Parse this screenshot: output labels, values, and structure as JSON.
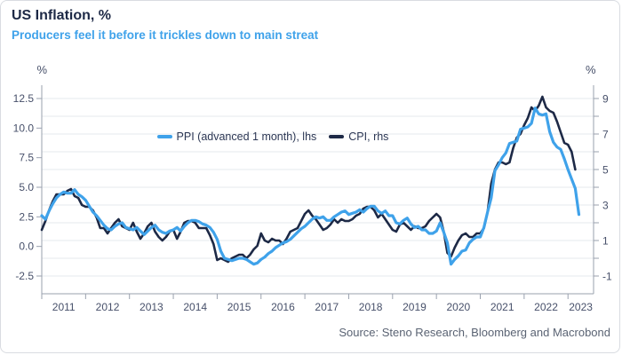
{
  "header": {
    "title": "US Inflation, %",
    "subtitle": "Producers feel it before it trickles down to main streat"
  },
  "footer": {
    "source": "Source: Steno Research, Bloomberg and Macrobond"
  },
  "colors": {
    "ppi_line": "#3fa2ea",
    "cpi_line": "#1d2946",
    "title_text": "#1d2946",
    "subtitle_text": "#3fa2ea",
    "grid": "#e6e8ec",
    "axis": "#9aa1ae",
    "tick_text": "#47506a"
  },
  "chart_data": {
    "type": "line",
    "title": "US Inflation, %",
    "subtitle": "Producers feel it before it trickles down to main streat",
    "x_unit": "month",
    "x_start": "2011-01",
    "x_months_span": 151,
    "x_tick_years": [
      "2011",
      "2012",
      "2013",
      "2014",
      "2015",
      "2016",
      "2017",
      "2018",
      "2019",
      "2020",
      "2021",
      "2022",
      "2023"
    ],
    "grid": "horizontal",
    "legend_position": "top-center",
    "left_axis": {
      "unit_label": "%",
      "min": -2.5,
      "max": 12.5,
      "tick_values": [
        12.5,
        10.0,
        7.5,
        5.0,
        2.5,
        0.0,
        -2.5
      ],
      "tick_labels": [
        "12.5",
        "10.0",
        "7.5",
        "5.0",
        "2.5",
        "0.0",
        "-2.5"
      ]
    },
    "right_axis": {
      "unit_label": "%",
      "min": -1,
      "max": 9,
      "label_values": [
        9,
        7,
        5,
        3,
        1,
        -1
      ],
      "minor_tick_values": [
        9,
        8,
        7,
        6,
        5,
        4,
        3,
        2,
        1,
        0,
        -1
      ]
    },
    "gridline_values_rhs": [
      9,
      8,
      7,
      6,
      5,
      4,
      3,
      2,
      1,
      0,
      -1
    ],
    "series": [
      {
        "name": "PPI (advanced 1 month), lhs",
        "axis": "left",
        "color": "#3fa2ea",
        "stroke_width": 3.2,
        "values": [
          2.6,
          2.3,
          3.0,
          3.6,
          4.1,
          4.4,
          4.6,
          4.5,
          4.5,
          4.8,
          4.4,
          4.2,
          3.9,
          3.4,
          2.9,
          2.6,
          2.2,
          1.8,
          1.5,
          1.4,
          1.7,
          1.9,
          2.0,
          1.6,
          1.5,
          1.4,
          1.6,
          1.3,
          1.0,
          1.3,
          1.6,
          1.8,
          1.4,
          1.2,
          1.1,
          1.3,
          1.4,
          1.6,
          1.3,
          1.7,
          2.0,
          2.2,
          2.2,
          2.1,
          1.9,
          1.8,
          1.6,
          1.2,
          0.6,
          -0.4,
          -1.0,
          -1.1,
          -1.2,
          -1.1,
          -1.0,
          -1.0,
          -1.1,
          -1.3,
          -1.5,
          -1.4,
          -1.1,
          -0.9,
          -0.6,
          -0.4,
          -0.1,
          0.1,
          0.3,
          0.4,
          0.6,
          0.9,
          1.2,
          1.5,
          1.7,
          2.0,
          2.3,
          2.5,
          2.4,
          2.5,
          2.2,
          2.2,
          2.5,
          2.7,
          2.9,
          3.0,
          2.7,
          2.8,
          2.9,
          3.1,
          2.9,
          3.2,
          3.4,
          3.4,
          3.0,
          2.8,
          3.0,
          2.6,
          2.6,
          2.0,
          1.9,
          2.2,
          2.4,
          1.9,
          1.6,
          1.7,
          1.4,
          1.4,
          1.1,
          1.1,
          1.3,
          2.0,
          1.2,
          0.3,
          -1.5,
          -1.1,
          -0.8,
          -0.4,
          -0.3,
          0.3,
          0.6,
          0.8,
          0.8,
          1.6,
          2.9,
          4.1,
          6.4,
          6.9,
          7.5,
          7.9,
          8.7,
          8.8,
          8.9,
          9.9,
          10.0,
          10.1,
          10.4,
          11.7,
          11.2,
          11.1,
          11.2,
          9.7,
          8.8,
          8.4,
          8.2,
          7.4,
          6.5,
          5.7,
          4.9,
          2.7
        ]
      },
      {
        "name": "CPI, rhs",
        "axis": "right",
        "color": "#1d2946",
        "stroke_width": 2.6,
        "values": [
          1.6,
          2.1,
          2.7,
          3.2,
          3.6,
          3.6,
          3.6,
          3.8,
          3.9,
          3.5,
          3.4,
          3.0,
          2.9,
          2.9,
          2.7,
          2.3,
          1.7,
          1.7,
          1.4,
          1.7,
          2.0,
          2.2,
          1.8,
          1.7,
          1.6,
          2.0,
          1.5,
          1.1,
          1.4,
          1.8,
          2.0,
          1.5,
          1.2,
          1.0,
          1.2,
          1.5,
          1.6,
          1.1,
          1.5,
          2.0,
          2.1,
          2.1,
          2.0,
          1.7,
          1.7,
          1.7,
          1.3,
          0.8,
          -0.1,
          0.0,
          -0.1,
          -0.2,
          0.0,
          0.1,
          0.2,
          0.2,
          0.0,
          0.2,
          0.5,
          0.7,
          1.4,
          1.0,
          0.9,
          1.1,
          1.0,
          1.0,
          0.8,
          1.1,
          1.5,
          1.6,
          1.7,
          2.1,
          2.5,
          2.7,
          2.4,
          2.2,
          1.9,
          1.6,
          1.7,
          1.9,
          2.2,
          2.0,
          2.2,
          2.1,
          2.1,
          2.2,
          2.4,
          2.5,
          2.8,
          2.9,
          2.9,
          2.7,
          2.3,
          2.5,
          2.2,
          1.9,
          1.6,
          1.5,
          1.9,
          2.0,
          1.8,
          1.6,
          1.8,
          1.7,
          1.7,
          1.8,
          2.1,
          2.3,
          2.5,
          2.3,
          1.5,
          0.3,
          0.1,
          0.6,
          1.0,
          1.3,
          1.4,
          1.2,
          1.2,
          1.4,
          1.4,
          1.7,
          2.6,
          4.2,
          5.0,
          5.4,
          5.4,
          5.3,
          5.4,
          6.2,
          6.8,
          7.0,
          7.5,
          7.9,
          8.5,
          8.3,
          8.6,
          9.1,
          8.5,
          8.3,
          8.2,
          7.7,
          7.1,
          6.5,
          6.4,
          6.0,
          5.0
        ]
      }
    ]
  }
}
